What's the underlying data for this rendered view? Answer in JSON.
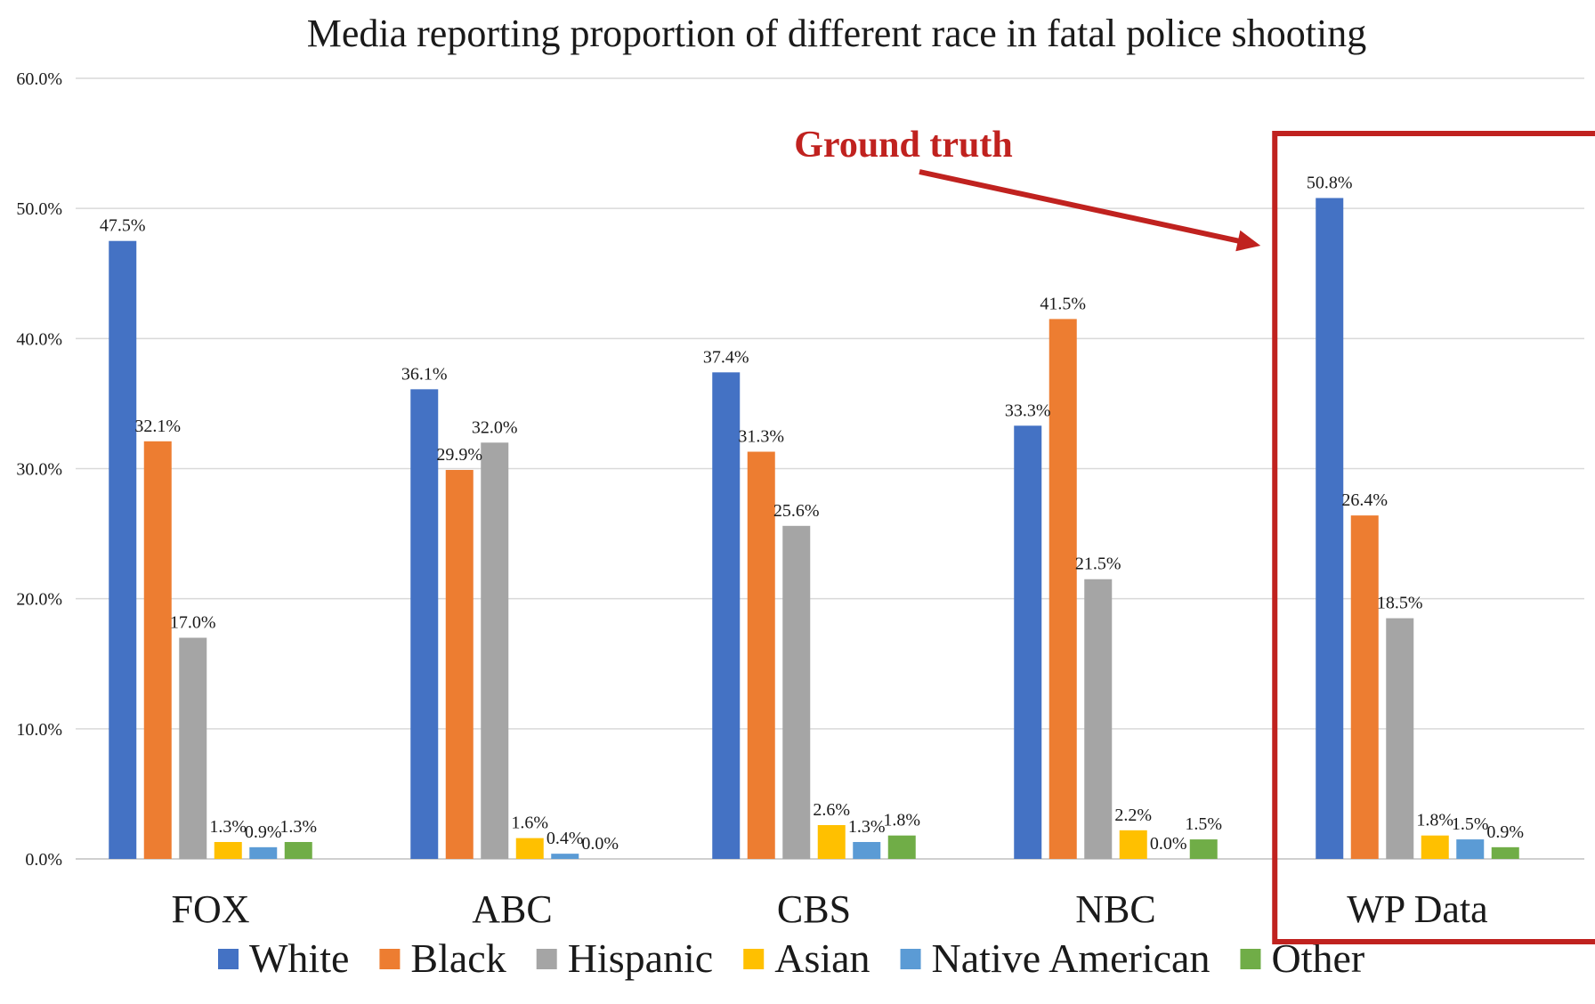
{
  "chart_data": {
    "type": "bar",
    "title": "Media reporting proportion of different race in fatal police shooting",
    "xlabel": "",
    "ylabel": "",
    "ylim": [
      0,
      60
    ],
    "yticks": [
      "0.0%",
      "10.0%",
      "20.0%",
      "30.0%",
      "40.0%",
      "50.0%",
      "60.0%"
    ],
    "grid": true,
    "legend_position": "bottom",
    "categories": [
      "FOX",
      "ABC",
      "CBS",
      "NBC",
      "WP Data"
    ],
    "series": [
      {
        "name": "White",
        "color": "#4472c4",
        "values": [
          47.5,
          36.1,
          37.4,
          33.3,
          50.8
        ],
        "labels": [
          "47.5%",
          "36.1%",
          "37.4%",
          "33.3%",
          "50.8%"
        ]
      },
      {
        "name": "Black",
        "color": "#ed7d31",
        "values": [
          32.1,
          29.9,
          31.3,
          41.5,
          26.4
        ],
        "labels": [
          "32.1%",
          "29.9%",
          "31.3%",
          "41.5%",
          "26.4%"
        ]
      },
      {
        "name": "Hispanic",
        "color": "#a5a5a5",
        "values": [
          17.0,
          32.0,
          25.6,
          21.5,
          18.5
        ],
        "labels": [
          "17.0%",
          "32.0%",
          "25.6%",
          "21.5%",
          "18.5%"
        ]
      },
      {
        "name": "Asian",
        "color": "#ffc000",
        "values": [
          1.3,
          1.6,
          2.6,
          2.2,
          1.8
        ],
        "labels": [
          "1.3%",
          "1.6%",
          "2.6%",
          "2.2%",
          "1.8%"
        ]
      },
      {
        "name": "Native American",
        "color": "#5b9bd5",
        "values": [
          0.9,
          0.4,
          1.3,
          0.0,
          1.5
        ],
        "labels": [
          "0.9%",
          "0.4%",
          "1.3%",
          "0.0%",
          "1.5%"
        ]
      },
      {
        "name": "Other",
        "color": "#70ad47",
        "values": [
          1.3,
          0.0,
          1.8,
          1.5,
          0.9
        ],
        "labels": [
          "1.3%",
          "0.0%",
          "1.8%",
          "1.5%",
          "0.9%"
        ]
      }
    ],
    "annotation": {
      "text": "Ground truth",
      "highlight_category": "WP Data",
      "color": "#c0221f"
    }
  }
}
